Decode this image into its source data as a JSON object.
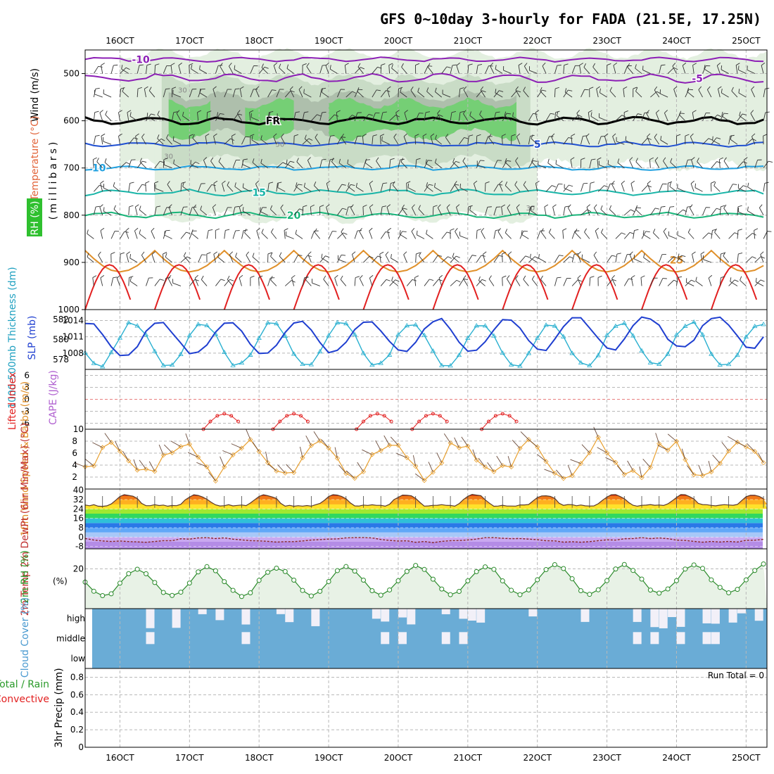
{
  "chart_data": {
    "type": "meteogram",
    "title": "GFS 0~10day 3-hourly for FADA (21.5E, 17.25N)",
    "time_axis": {
      "labels": [
        "16OCT",
        "17OCT",
        "18OCT",
        "19OCT",
        "20OCT",
        "21OCT",
        "22OCT",
        "23OCT",
        "24OCT",
        "25OCT"
      ],
      "start_day": 15.5,
      "end_day": 25.3
    },
    "colors": {
      "purple": "#8c1fb5",
      "black": "#000000",
      "blue": "#1f4fd1",
      "cyan": "#1fa0e0",
      "teal": "#19b5a8",
      "green": "#19b57a",
      "orange": "#e0902a",
      "red": "#e22020",
      "rh_light": "#e3efe0",
      "rh_mid": "#c9dcc6",
      "rh_dark": "#aebfac",
      "rh_moist": "#6fd06f",
      "cyan_thick": "#2ab0d0",
      "slp_blue": "#1f3fd0",
      "wind_orange": "#e8a030",
      "cloud": "#6aacd6",
      "cloud_gap": "#f2f0f8",
      "rh2m_line": "#2a8a2a",
      "rh2m_fill": "#e8f2e6"
    },
    "upper_panel": {
      "ylabel_wind": "Wind (m/s)",
      "ylabel_temp": "Temperature (°C)",
      "ylabel_rh": "RH (%)",
      "ylabel_p": "(millibars)",
      "y_ticks": [
        "500",
        "600",
        "700",
        "800",
        "900",
        "1000"
      ],
      "p_range": [
        450,
        1000
      ],
      "isotherms": [
        {
          "label": "-10",
          "color": "purple",
          "p": 470,
          "amp": 8,
          "label_day": 16.3
        },
        {
          "label": "-5",
          "color": "purple",
          "p": 510,
          "amp": 15,
          "label_day": 24.3
        },
        {
          "label": "FR",
          "color": "black",
          "p": 600,
          "amp": 12,
          "label_day": 18.2
        },
        {
          "label": "5",
          "color": "blue",
          "p": 650,
          "amp": 8,
          "label_day": 22.0
        },
        {
          "label": "10",
          "color": "cyan",
          "p": 700,
          "amp": 8,
          "label_day": 15.7
        },
        {
          "label": "15",
          "color": "teal",
          "p": 752,
          "amp": 10,
          "label_day": 18.0
        },
        {
          "label": "20",
          "color": "green",
          "p": 800,
          "amp": 10,
          "label_day": 18.5
        },
        {
          "label": "25",
          "color": "orange",
          "p": 895,
          "amp": 45,
          "label_day": 24.0
        }
      ],
      "rh_contour_labels": [
        "30",
        "30",
        "50",
        "30"
      ]
    },
    "thickness_panel": {
      "ylabel_left": "1000-500mb Thickness (dm)",
      "ylabel_right": "SLP (mb)",
      "left_ticks": [
        "578",
        "580",
        "582"
      ],
      "right_ticks": [
        "1008",
        "1011",
        "1014"
      ],
      "thickness_range": [
        577,
        583
      ],
      "slp_range": [
        1005,
        1016
      ]
    },
    "stability_panel": {
      "ylabel_left": "Lifted Index",
      "ylabel_right": "CAPE (J/kg)",
      "li_ticks": [
        "-6",
        "-3",
        "0",
        "3",
        "6"
      ],
      "cape_tick": "10"
    },
    "wind_panel": {
      "ylabel": "10m Wind Speed & Barbs (m/s)",
      "y_ticks": [
        "2",
        "4",
        "6",
        "8"
      ],
      "range": [
        0,
        10
      ]
    },
    "temp_panel": {
      "ylabel": "2m Temp 2m DewPt (6hr Min/Max) (°C)",
      "y_ticks": [
        "-8",
        "0",
        "8",
        "16",
        "24",
        "32",
        "40"
      ],
      "range": [
        -10,
        41
      ]
    },
    "rh2m_panel": {
      "ylabel": "2m RH (%)",
      "y_ticks": [
        "20"
      ],
      "range": [
        0,
        30
      ]
    },
    "cloud_panel": {
      "ylabel": "Cloud Cover (%)",
      "levels": [
        "high",
        "middle",
        "low"
      ]
    },
    "precip_panel": {
      "ylabel_total": "Total / Rain",
      "ylabel_convective": "Convective",
      "ylabel": "3hr Precip (mm)",
      "y_ticks": [
        "0",
        "0.2",
        "0.4",
        "0.6",
        "0.8"
      ],
      "range": [
        0,
        0.9
      ],
      "run_total": "Run Total = 0"
    }
  }
}
